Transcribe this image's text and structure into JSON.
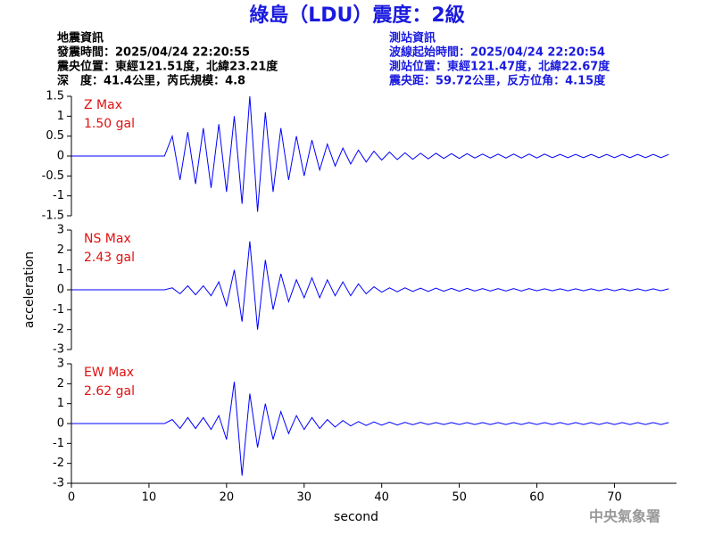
{
  "header": {
    "title": "綠島（LDU）震度：2級",
    "left": [
      "地震資訊",
      "發震時間：2025/04/24 22:20:55",
      "震央位置：東經121.51度，北緯23.21度",
      "深　度：41.4公里，芮氏規模：4.8"
    ],
    "right": [
      "測站資訊",
      "波線起始時間：2025/04/24 22:20:54",
      "測站位置：東經121.47度，北緯22.67度",
      "震央距：59.72公里，反方位角：4.15度"
    ],
    "watermark": "中央氣象署"
  },
  "chart_data": [
    {
      "type": "line",
      "annotation": [
        "Z Max",
        "1.50 gal"
      ],
      "color": "#0000ff",
      "xlim": [
        0,
        78
      ],
      "ylim": [
        -1.5,
        1.5
      ],
      "yticks": [
        1.5,
        1,
        0.5,
        0,
        -0.5,
        -1,
        -1.5
      ],
      "x": [
        0,
        1,
        2,
        3,
        4,
        5,
        6,
        7,
        8,
        9,
        10,
        11,
        12,
        13,
        14,
        15,
        16,
        17,
        18,
        19,
        20,
        21,
        22,
        23,
        24,
        25,
        26,
        27,
        28,
        29,
        30,
        31,
        32,
        33,
        34,
        35,
        36,
        37,
        38,
        39,
        40,
        41,
        42,
        43,
        44,
        45,
        46,
        47,
        48,
        49,
        50,
        51,
        52,
        53,
        54,
        55,
        56,
        57,
        58,
        59,
        60,
        61,
        62,
        63,
        64,
        65,
        66,
        67,
        68,
        69,
        70,
        71,
        72,
        73,
        74,
        75,
        76,
        77
      ],
      "values": [
        0,
        0,
        0,
        0,
        0,
        0,
        0,
        0,
        0,
        0,
        0,
        0,
        0,
        0.5,
        -0.6,
        0.6,
        -0.7,
        0.7,
        -0.8,
        0.8,
        -0.9,
        1.0,
        -1.2,
        1.5,
        -1.4,
        1.1,
        -0.9,
        0.7,
        -0.6,
        0.5,
        -0.5,
        0.4,
        -0.35,
        0.3,
        -0.25,
        0.2,
        -0.2,
        0.15,
        -0.15,
        0.12,
        -0.1,
        0.1,
        -0.09,
        0.08,
        -0.08,
        0.07,
        -0.07,
        0.07,
        -0.06,
        0.06,
        -0.06,
        0.06,
        -0.05,
        0.05,
        -0.05,
        0.05,
        -0.05,
        0.05,
        -0.05,
        0.05,
        -0.05,
        0.05,
        -0.04,
        0.04,
        -0.04,
        0.04,
        -0.04,
        0.04,
        -0.04,
        0.04,
        -0.04,
        0.04,
        -0.04,
        0.04,
        -0.04,
        0.04,
        -0.04,
        0.04
      ]
    },
    {
      "type": "line",
      "annotation": [
        "NS Max",
        "2.43 gal"
      ],
      "ylabel": "acceleration",
      "color": "#0000ff",
      "xlim": [
        0,
        78
      ],
      "ylim": [
        -3,
        3
      ],
      "yticks": [
        3,
        2,
        1,
        0,
        -1,
        -2,
        -3
      ],
      "x": [
        0,
        1,
        2,
        3,
        4,
        5,
        6,
        7,
        8,
        9,
        10,
        11,
        12,
        13,
        14,
        15,
        16,
        17,
        18,
        19,
        20,
        21,
        22,
        23,
        24,
        25,
        26,
        27,
        28,
        29,
        30,
        31,
        32,
        33,
        34,
        35,
        36,
        37,
        38,
        39,
        40,
        41,
        42,
        43,
        44,
        45,
        46,
        47,
        48,
        49,
        50,
        51,
        52,
        53,
        54,
        55,
        56,
        57,
        58,
        59,
        60,
        61,
        62,
        63,
        64,
        65,
        66,
        67,
        68,
        69,
        70,
        71,
        72,
        73,
        74,
        75,
        76,
        77
      ],
      "values": [
        0,
        0,
        0,
        0,
        0,
        0,
        0,
        0,
        0,
        0,
        0,
        0,
        0,
        0.1,
        -0.2,
        0.2,
        -0.25,
        0.2,
        -0.3,
        0.4,
        -0.8,
        1.0,
        -1.6,
        2.43,
        -2.0,
        1.5,
        -1.0,
        0.8,
        -0.6,
        0.5,
        -0.4,
        0.6,
        -0.4,
        0.5,
        -0.3,
        0.4,
        -0.3,
        0.3,
        -0.2,
        0.15,
        -0.12,
        0.1,
        -0.1,
        0.1,
        -0.08,
        0.08,
        -0.08,
        0.08,
        -0.07,
        0.07,
        -0.07,
        0.07,
        -0.06,
        0.06,
        -0.06,
        0.06,
        -0.06,
        0.06,
        -0.06,
        0.06,
        -0.05,
        0.05,
        -0.05,
        0.05,
        -0.05,
        0.05,
        -0.05,
        0.05,
        -0.05,
        0.05,
        -0.05,
        0.05,
        -0.05,
        0.05,
        -0.05,
        0.05,
        -0.05,
        0.05
      ]
    },
    {
      "type": "line",
      "annotation": [
        "EW Max",
        "2.62 gal"
      ],
      "xlabel": "second",
      "color": "#0000ff",
      "xlim": [
        0,
        78
      ],
      "ylim": [
        -3,
        3
      ],
      "yticks": [
        3,
        2,
        1,
        0,
        -1,
        -2,
        -3
      ],
      "xticks": [
        0,
        10,
        20,
        30,
        40,
        50,
        60,
        70
      ],
      "x": [
        0,
        1,
        2,
        3,
        4,
        5,
        6,
        7,
        8,
        9,
        10,
        11,
        12,
        13,
        14,
        15,
        16,
        17,
        18,
        19,
        20,
        21,
        22,
        23,
        24,
        25,
        26,
        27,
        28,
        29,
        30,
        31,
        32,
        33,
        34,
        35,
        36,
        37,
        38,
        39,
        40,
        41,
        42,
        43,
        44,
        45,
        46,
        47,
        48,
        49,
        50,
        51,
        52,
        53,
        54,
        55,
        56,
        57,
        58,
        59,
        60,
        61,
        62,
        63,
        64,
        65,
        66,
        67,
        68,
        69,
        70,
        71,
        72,
        73,
        74,
        75,
        76,
        77
      ],
      "values": [
        0,
        0,
        0,
        0,
        0,
        0,
        0,
        0,
        0,
        0,
        0,
        0,
        0,
        0.2,
        -0.25,
        0.3,
        -0.25,
        0.3,
        -0.3,
        0.4,
        -0.8,
        2.1,
        -2.62,
        1.5,
        -1.2,
        1.0,
        -0.8,
        0.6,
        -0.5,
        0.4,
        -0.3,
        0.3,
        -0.25,
        0.2,
        -0.18,
        0.15,
        -0.12,
        0.1,
        -0.1,
        0.08,
        -0.08,
        0.07,
        -0.07,
        0.06,
        -0.06,
        0.06,
        -0.05,
        0.05,
        -0.05,
        0.05,
        -0.05,
        0.05,
        -0.05,
        0.05,
        -0.05,
        0.05,
        -0.05,
        0.05,
        -0.05,
        0.05,
        -0.05,
        0.05,
        -0.05,
        0.05,
        -0.05,
        0.05,
        -0.05,
        0.05,
        -0.05,
        0.05,
        -0.05,
        0.05,
        -0.05,
        0.05,
        -0.05,
        0.05,
        -0.05,
        0.05
      ]
    }
  ]
}
